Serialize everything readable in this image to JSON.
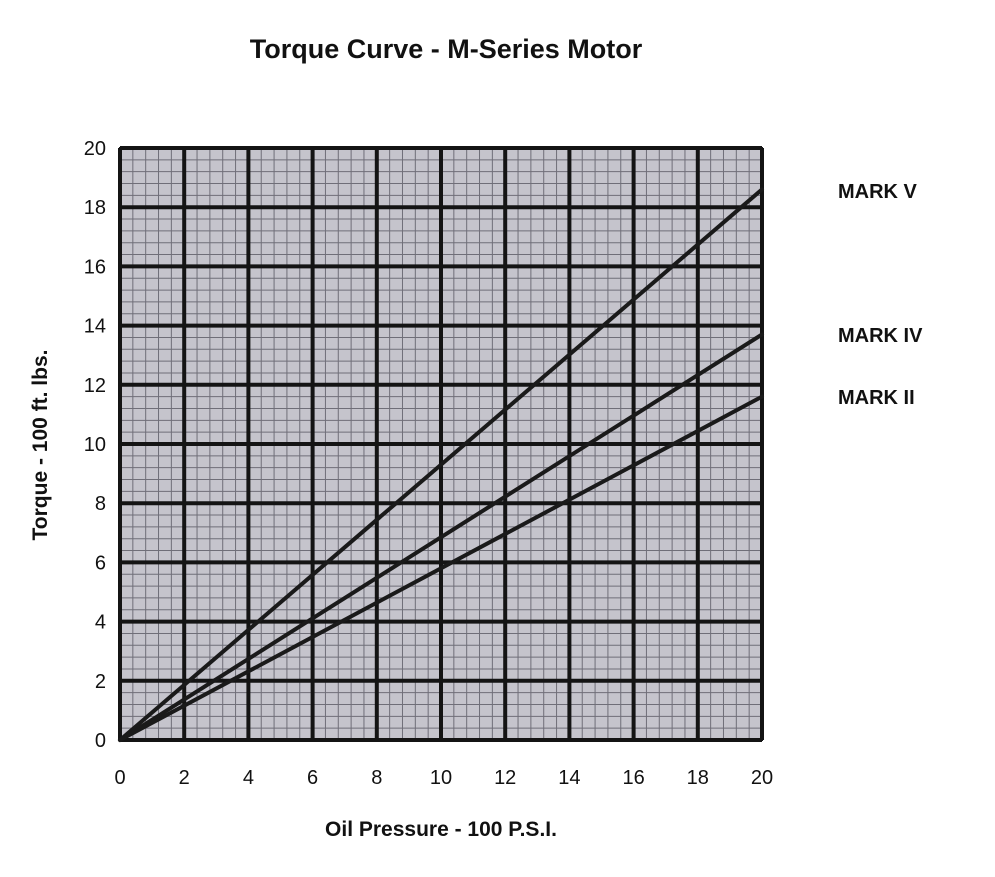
{
  "chart_data": {
    "type": "line",
    "title": "Torque Curve - M-Series Motor",
    "xlabel": "Oil Pressure - 100 P.S.I.",
    "ylabel": "Torque - 100 ft. lbs.",
    "xlim": [
      0,
      20
    ],
    "ylim": [
      0,
      20
    ],
    "xticks": [
      0,
      2,
      4,
      6,
      8,
      10,
      12,
      14,
      16,
      18,
      20
    ],
    "yticks": [
      0,
      2,
      4,
      6,
      8,
      10,
      12,
      14,
      16,
      18,
      20
    ],
    "minor_step": 0.4,
    "grid": true,
    "legend": "series labels at right of plot",
    "series": [
      {
        "name": "MARK V",
        "x": [
          0,
          20
        ],
        "y": [
          0,
          18.6
        ]
      },
      {
        "name": "MARK IV",
        "x": [
          0,
          20
        ],
        "y": [
          0,
          13.7
        ]
      },
      {
        "name": "MARK II",
        "x": [
          0,
          20
        ],
        "y": [
          0,
          11.6
        ]
      }
    ],
    "colors": {
      "plot_background": "#c5c4cc",
      "minor_grid": "#6f6e78",
      "major_grid": "#141414",
      "line": "#1a1a1a"
    }
  }
}
